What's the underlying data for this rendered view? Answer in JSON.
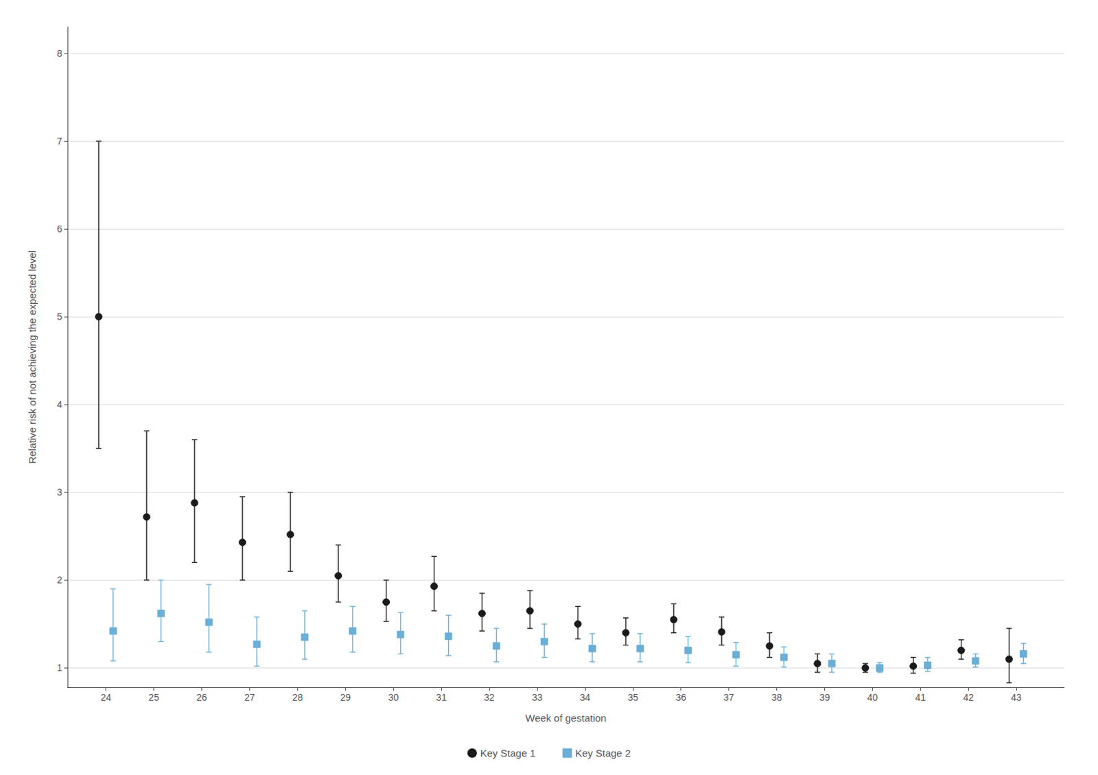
{
  "chart_data": {
    "type": "scatter",
    "x_label": "Week of gestation",
    "y_label": "Relative risk of not achieving the expected level",
    "x": [
      24,
      25,
      26,
      27,
      28,
      29,
      30,
      31,
      32,
      33,
      34,
      35,
      36,
      37,
      38,
      39,
      40,
      41,
      42,
      43
    ],
    "series": [
      {
        "name": "Key Stage 1",
        "color": "#1a1a1a",
        "marker": "circle",
        "values": [
          5.0,
          2.72,
          2.88,
          2.43,
          2.52,
          2.05,
          1.75,
          1.93,
          1.62,
          1.65,
          1.5,
          1.4,
          1.55,
          1.41,
          1.25,
          1.05,
          1.0,
          1.02,
          1.2,
          1.1
        ],
        "lower": [
          3.5,
          2.0,
          2.2,
          2.0,
          2.1,
          1.75,
          1.53,
          1.65,
          1.42,
          1.45,
          1.33,
          1.26,
          1.4,
          1.26,
          1.12,
          0.95,
          0.95,
          0.94,
          1.1,
          0.83
        ],
        "upper": [
          7.0,
          3.7,
          3.6,
          2.95,
          3.0,
          2.4,
          2.0,
          2.27,
          1.85,
          1.88,
          1.7,
          1.57,
          1.73,
          1.58,
          1.4,
          1.16,
          1.05,
          1.12,
          1.32,
          1.45
        ]
      },
      {
        "name": "Key Stage 2",
        "color": "#6baed6",
        "marker": "square",
        "values": [
          1.42,
          1.62,
          1.52,
          1.27,
          1.35,
          1.42,
          1.38,
          1.36,
          1.25,
          1.3,
          1.22,
          1.22,
          1.2,
          1.15,
          1.12,
          1.05,
          1.0,
          1.03,
          1.08,
          1.16
        ],
        "lower": [
          1.08,
          1.3,
          1.18,
          1.02,
          1.1,
          1.18,
          1.16,
          1.14,
          1.07,
          1.12,
          1.07,
          1.07,
          1.06,
          1.02,
          1.01,
          0.95,
          0.95,
          0.96,
          1.01,
          1.05
        ],
        "upper": [
          1.9,
          2.0,
          1.95,
          1.58,
          1.65,
          1.7,
          1.63,
          1.6,
          1.45,
          1.5,
          1.39,
          1.39,
          1.36,
          1.29,
          1.24,
          1.16,
          1.06,
          1.12,
          1.16,
          1.28
        ]
      }
    ],
    "xlim": [
      23.2,
      44.0
    ],
    "xticks": [
      24,
      25,
      26,
      27,
      28,
      29,
      30,
      31,
      32,
      33,
      34,
      35,
      36,
      37,
      38,
      39,
      40,
      41,
      42,
      43
    ],
    "ylim": [
      0.78,
      8.3
    ],
    "yticks": [
      1,
      2,
      3,
      4,
      5,
      6,
      7,
      8
    ],
    "grid": true,
    "legend": "bottom"
  }
}
